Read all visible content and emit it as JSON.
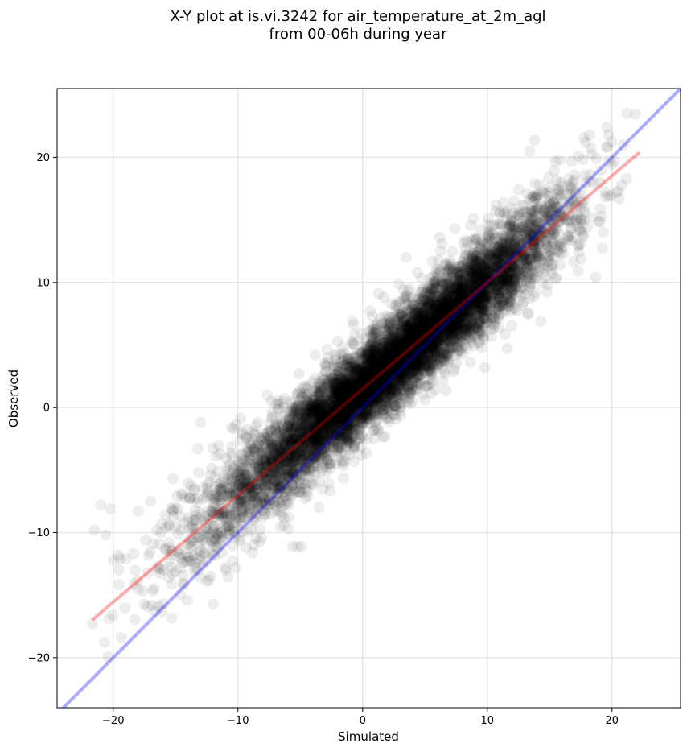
{
  "chart_data": {
    "type": "scatter",
    "title": "X-Y plot at is.vi.3242 for air_temperature_at_2m_agl",
    "subtitle": "from 00-06h during year",
    "xlabel": "Simulated",
    "ylabel": "Observed",
    "xlim": [
      -24.5,
      25.5
    ],
    "ylim": [
      -24.0,
      25.5
    ],
    "xticks": [
      -20,
      -10,
      0,
      10,
      20
    ],
    "yticks": [
      -20,
      -10,
      0,
      10,
      20
    ],
    "xtick_labels": [
      "−20",
      "−10",
      "0",
      "10",
      "20"
    ],
    "ytick_labels": [
      "−20",
      "−10",
      "0",
      "10",
      "20"
    ],
    "grid": true,
    "point_color": "#000000",
    "point_alpha": 0.07,
    "reference_line": {
      "color": "#0000ff",
      "alpha": 0.33,
      "slope": 1,
      "intercept": 0
    },
    "fit_line": {
      "color": "#ff0000",
      "alpha": 0.33,
      "x": [
        -21.7,
        22.2
      ],
      "y": [
        -17.0,
        20.4
      ]
    },
    "points": [
      [
        -21.5,
        -9.8
      ],
      [
        -21.0,
        -7.8
      ],
      [
        -20.6,
        -10.2
      ],
      [
        -20.2,
        -8.1
      ],
      [
        -20.0,
        -12.2
      ],
      [
        -19.6,
        -11.8
      ],
      [
        -19.0,
        -12.1
      ],
      [
        -18.3,
        -14.1
      ],
      [
        -18.0,
        -8.3
      ],
      [
        -17.4,
        -10.6
      ],
      [
        -17.0,
        -7.5
      ],
      [
        -16.5,
        -9.8
      ],
      [
        -16.2,
        -12.9
      ],
      [
        -15.8,
        -8.6
      ],
      [
        -15.5,
        -11.2
      ],
      [
        -15.2,
        -5.7
      ],
      [
        -14.8,
        -10.1
      ],
      [
        -14.5,
        -7.0
      ],
      [
        -14.0,
        -12.3
      ],
      [
        -13.6,
        -9.0
      ],
      [
        -13.2,
        -3.3
      ],
      [
        -13.0,
        -1.2
      ],
      [
        -12.8,
        -6.4
      ],
      [
        -12.5,
        -13.9
      ],
      [
        -12.0,
        -8.8
      ],
      [
        -11.6,
        -5.1
      ],
      [
        -11.2,
        -10.3
      ],
      [
        -10.8,
        -7.2
      ],
      [
        -10.5,
        -1.6
      ],
      [
        -10.2,
        -12.8
      ],
      [
        -9.8,
        -9.1
      ],
      [
        -9.5,
        -4.3
      ],
      [
        -9.0,
        -6.2
      ],
      [
        -8.7,
        -11.0
      ],
      [
        -8.4,
        -1.2
      ],
      [
        -8.0,
        -3.6
      ],
      [
        -7.6,
        -7.8
      ],
      [
        -7.3,
        0.5
      ],
      [
        -7.0,
        -5.2
      ],
      [
        -6.6,
        -2.0
      ],
      [
        -6.3,
        -9.4
      ],
      [
        -6.0,
        -4.1
      ],
      [
        -5.6,
        -11.1
      ],
      [
        -5.2,
        -11.1
      ],
      [
        -4.9,
        -11.1
      ],
      [
        -5.5,
        -0.6
      ],
      [
        -5.1,
        2.7
      ],
      [
        -4.8,
        -6.8
      ],
      [
        -4.5,
        1.5
      ],
      [
        -4.2,
        -3.2
      ],
      [
        -3.8,
        4.2
      ],
      [
        -3.5,
        -8.0
      ],
      [
        -3.2,
        -1.0
      ],
      [
        -3.0,
        2.9
      ],
      [
        -2.6,
        -4.5
      ],
      [
        -2.3,
        0.8
      ],
      [
        -2.0,
        5.3
      ],
      [
        -1.7,
        -2.4
      ],
      [
        -1.4,
        3.4
      ],
      [
        -1.0,
        -0.3
      ],
      [
        -0.7,
        6.6
      ],
      [
        -0.4,
        1.2
      ],
      [
        -0.1,
        -3.8
      ],
      [
        0.2,
        4.9
      ],
      [
        0.5,
        0.4
      ],
      [
        0.8,
        7.3
      ],
      [
        1.1,
        -1.7
      ],
      [
        1.4,
        3.1
      ],
      [
        1.7,
        8.8
      ],
      [
        2.0,
        1.9
      ],
      [
        2.3,
        5.5
      ],
      [
        2.6,
        -0.6
      ],
      [
        2.9,
        9.9
      ],
      [
        3.2,
        3.8
      ],
      [
        3.5,
        12.0
      ],
      [
        3.8,
        1.4
      ],
      [
        4.1,
        7.0
      ],
      [
        4.4,
        10.8
      ],
      [
        4.7,
        4.2
      ],
      [
        5.0,
        0.6
      ],
      [
        5.3,
        8.4
      ],
      [
        5.6,
        11.7
      ],
      [
        5.9,
        5.1
      ],
      [
        6.2,
        13.6
      ],
      [
        6.5,
        2.9
      ],
      [
        6.8,
        9.3
      ],
      [
        7.1,
        6.1
      ],
      [
        7.4,
        14.3
      ],
      [
        7.7,
        10.6
      ],
      [
        8.0,
        4.8
      ],
      [
        8.3,
        12.2
      ],
      [
        8.6,
        8.0
      ],
      [
        8.9,
        15.1
      ],
      [
        9.2,
        6.8
      ],
      [
        9.5,
        11.4
      ],
      [
        9.8,
        3.2
      ],
      [
        10.1,
        13.8
      ],
      [
        10.4,
        9.5
      ],
      [
        10.7,
        16.2
      ],
      [
        11.0,
        7.5
      ],
      [
        11.3,
        12.9
      ],
      [
        11.6,
        4.7
      ],
      [
        11.9,
        15.0
      ],
      [
        12.2,
        10.3
      ],
      [
        12.5,
        17.4
      ],
      [
        12.8,
        8.2
      ],
      [
        13.1,
        14.1
      ],
      [
        13.4,
        20.5
      ],
      [
        13.7,
        11.2
      ],
      [
        14.0,
        16.8
      ],
      [
        14.3,
        6.9
      ],
      [
        14.6,
        13.3
      ],
      [
        14.9,
        18.4
      ],
      [
        15.2,
        10.7
      ],
      [
        15.5,
        15.6
      ],
      [
        15.8,
        19.8
      ],
      [
        16.1,
        12.8
      ],
      [
        16.4,
        17.0
      ],
      [
        16.7,
        14.3
      ],
      [
        17.0,
        18.6
      ],
      [
        17.3,
        12.9
      ],
      [
        17.6,
        16.4
      ],
      [
        17.9,
        21.2
      ],
      [
        18.2,
        21.8
      ],
      [
        18.4,
        15.2
      ],
      [
        18.7,
        10.4
      ],
      [
        19.0,
        18.0
      ],
      [
        19.3,
        14.0
      ],
      [
        19.6,
        20.8
      ],
      [
        19.9,
        16.9
      ],
      [
        20.2,
        19.7
      ],
      [
        20.5,
        17.3
      ],
      [
        20.9,
        21.0
      ],
      [
        21.2,
        23.5
      ]
    ],
    "density_bands": [
      {
        "x": -21,
        "spread": 2.2,
        "n": 5
      },
      {
        "x": -19,
        "spread": 2.1,
        "n": 9
      },
      {
        "x": -17,
        "spread": 2.0,
        "n": 20
      },
      {
        "x": -15,
        "spread": 1.9,
        "n": 45
      },
      {
        "x": -13,
        "spread": 1.8,
        "n": 90
      },
      {
        "x": -11,
        "spread": 1.75,
        "n": 160
      },
      {
        "x": -9,
        "spread": 1.7,
        "n": 260
      },
      {
        "x": -7,
        "spread": 1.65,
        "n": 380
      },
      {
        "x": -5,
        "spread": 1.6,
        "n": 520
      },
      {
        "x": -3,
        "spread": 1.55,
        "n": 700
      },
      {
        "x": -1,
        "spread": 1.5,
        "n": 880
      },
      {
        "x": 1,
        "spread": 1.5,
        "n": 960
      },
      {
        "x": 3,
        "spread": 1.5,
        "n": 940
      },
      {
        "x": 5,
        "spread": 1.5,
        "n": 880
      },
      {
        "x": 7,
        "spread": 1.5,
        "n": 800
      },
      {
        "x": 9,
        "spread": 1.55,
        "n": 700
      },
      {
        "x": 11,
        "spread": 1.6,
        "n": 520
      },
      {
        "x": 13,
        "spread": 1.65,
        "n": 320
      },
      {
        "x": 15,
        "spread": 1.7,
        "n": 170
      },
      {
        "x": 17,
        "spread": 1.8,
        "n": 70
      },
      {
        "x": 19,
        "spread": 1.9,
        "n": 22
      },
      {
        "x": 21,
        "spread": 2.0,
        "n": 5
      }
    ]
  }
}
